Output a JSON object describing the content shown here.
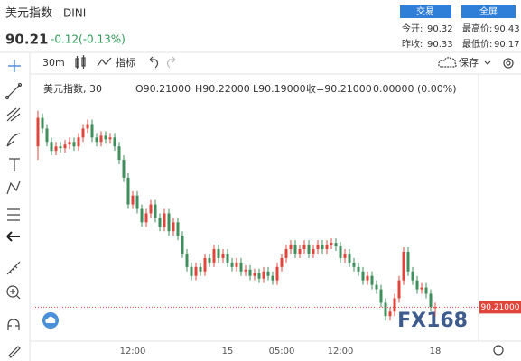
{
  "header": {
    "name": "美元指数",
    "code": "DINI",
    "price": "90.21",
    "change": "-0.12(-0.13%)",
    "buttons": [
      "交易",
      "全屏"
    ],
    "stats": [
      [
        "今开:",
        "90.32"
      ],
      [
        "最高价:",
        "90.43"
      ],
      [
        "昨收:",
        "90.33"
      ],
      [
        "最低价:",
        "90.17"
      ]
    ]
  },
  "toolbar": {
    "interval": "30m",
    "indicators": "指标",
    "save": "保存"
  },
  "legend": {
    "symbol": "美元指数, 30",
    "items": [
      "O90.21000",
      "H90.22000",
      "L90.19000",
      "收=90.21000",
      "0.00000 (0.00%)"
    ]
  },
  "watermark": "FX168",
  "chart_data": {
    "type": "candlestick",
    "up_color": "#e0453c",
    "down_color": "#3f8f5c",
    "ylim": [
      90.14,
      90.72
    ],
    "last_price": {
      "value": 90.21,
      "label": "90.21000",
      "color": "#e0453c"
    },
    "categories": [
      null,
      null,
      null,
      null,
      null,
      null,
      null,
      null,
      null,
      null,
      null,
      null,
      null,
      null,
      null,
      null,
      null,
      null,
      null,
      null,
      null,
      "12:00",
      null,
      null,
      null,
      null,
      null,
      null,
      null,
      null,
      null,
      null,
      null,
      null,
      null,
      null,
      null,
      null,
      null,
      null,
      null,
      null,
      "15",
      null,
      null,
      null,
      null,
      null,
      null,
      null,
      null,
      null,
      null,
      null,
      "05:00",
      null,
      null,
      null,
      null,
      null,
      null,
      null,
      null,
      null,
      null,
      null,
      null,
      "12:00",
      null,
      null,
      null,
      null,
      null,
      null,
      null,
      null,
      null,
      null,
      null,
      null,
      null,
      null,
      null,
      null,
      null,
      null,
      null,
      null,
      "18"
    ],
    "open": [
      90.57,
      90.634,
      90.61,
      90.58,
      90.56,
      90.57,
      90.566,
      90.574,
      90.58,
      90.57,
      90.59,
      90.61,
      90.62,
      90.59,
      90.58,
      90.594,
      90.586,
      90.59,
      90.57,
      90.54,
      90.5,
      90.44,
      90.46,
      90.43,
      90.4,
      90.42,
      90.44,
      90.41,
      90.39,
      90.42,
      90.38,
      90.4,
      90.37,
      90.33,
      90.3,
      90.28,
      90.3,
      90.29,
      90.32,
      90.31,
      90.34,
      90.32,
      90.33,
      90.31,
      90.3,
      90.31,
      90.29,
      90.294,
      90.28,
      90.286,
      90.274,
      90.29,
      90.28,
      90.27,
      90.3,
      90.32,
      90.34,
      90.35,
      90.33,
      90.34,
      90.35,
      90.33,
      90.34,
      90.35,
      90.34,
      90.35,
      90.354,
      90.346,
      90.32,
      90.33,
      90.31,
      90.3,
      90.29,
      90.27,
      90.28,
      90.26,
      90.25,
      90.22,
      90.19,
      90.2,
      90.23,
      90.27,
      90.334,
      90.29,
      90.27,
      90.25,
      90.254,
      90.24,
      90.21
    ],
    "high": [
      90.65,
      90.644,
      90.62,
      90.59,
      90.58,
      90.58,
      90.584,
      90.59,
      90.59,
      90.6,
      90.62,
      90.63,
      90.63,
      90.6,
      90.604,
      90.604,
      90.6,
      90.6,
      90.58,
      90.55,
      90.51,
      90.47,
      90.47,
      90.44,
      90.43,
      90.45,
      90.45,
      90.42,
      90.43,
      90.43,
      90.41,
      90.41,
      90.38,
      90.34,
      90.31,
      90.31,
      90.31,
      90.33,
      90.33,
      90.35,
      90.35,
      90.34,
      90.34,
      90.32,
      90.32,
      90.32,
      90.304,
      90.304,
      90.296,
      90.296,
      90.3,
      90.3,
      90.29,
      90.31,
      90.33,
      90.35,
      90.36,
      90.36,
      90.35,
      90.36,
      90.36,
      90.35,
      90.36,
      90.36,
      90.36,
      90.364,
      90.364,
      90.356,
      90.34,
      90.34,
      90.32,
      90.31,
      90.3,
      90.29,
      90.29,
      90.27,
      90.26,
      90.23,
      90.21,
      90.24,
      90.28,
      90.344,
      90.344,
      90.3,
      90.28,
      90.264,
      90.264,
      90.25,
      90.22
    ],
    "low": [
      90.54,
      90.6,
      90.57,
      90.55,
      90.55,
      90.556,
      90.556,
      90.564,
      90.56,
      90.56,
      90.58,
      90.6,
      90.58,
      90.57,
      90.57,
      90.576,
      90.576,
      90.56,
      90.53,
      90.49,
      90.43,
      90.43,
      90.42,
      90.39,
      90.39,
      90.41,
      90.4,
      90.38,
      90.38,
      90.37,
      90.37,
      90.36,
      90.32,
      90.29,
      90.27,
      90.27,
      90.28,
      90.28,
      90.3,
      90.3,
      90.31,
      90.31,
      90.3,
      90.29,
      90.29,
      90.28,
      90.28,
      90.27,
      90.27,
      90.264,
      90.264,
      90.27,
      90.26,
      90.26,
      90.29,
      90.31,
      90.33,
      90.32,
      90.32,
      90.33,
      90.32,
      90.32,
      90.33,
      90.33,
      90.33,
      90.34,
      90.336,
      90.31,
      90.31,
      90.3,
      90.29,
      90.28,
      90.26,
      90.26,
      90.25,
      90.24,
      90.21,
      90.18,
      90.18,
      90.19,
      90.22,
      90.26,
      90.28,
      90.26,
      90.24,
      90.24,
      90.23,
      90.2,
      90.19
    ],
    "close": [
      90.634,
      90.61,
      90.58,
      90.56,
      90.57,
      90.566,
      90.574,
      90.58,
      90.57,
      90.59,
      90.61,
      90.62,
      90.59,
      90.58,
      90.594,
      90.586,
      90.59,
      90.57,
      90.54,
      90.5,
      90.44,
      90.46,
      90.43,
      90.4,
      90.42,
      90.44,
      90.41,
      90.39,
      90.42,
      90.38,
      90.4,
      90.37,
      90.33,
      90.3,
      90.28,
      90.3,
      90.29,
      90.32,
      90.31,
      90.34,
      90.32,
      90.33,
      90.31,
      90.3,
      90.31,
      90.29,
      90.294,
      90.28,
      90.286,
      90.274,
      90.29,
      90.28,
      90.27,
      90.3,
      90.32,
      90.34,
      90.35,
      90.33,
      90.34,
      90.35,
      90.33,
      90.34,
      90.35,
      90.34,
      90.35,
      90.354,
      90.346,
      90.32,
      90.33,
      90.31,
      90.3,
      90.29,
      90.27,
      90.28,
      90.26,
      90.25,
      90.22,
      90.19,
      90.2,
      90.23,
      90.27,
      90.334,
      90.29,
      90.27,
      90.25,
      90.254,
      90.24,
      90.21,
      90.21
    ]
  }
}
